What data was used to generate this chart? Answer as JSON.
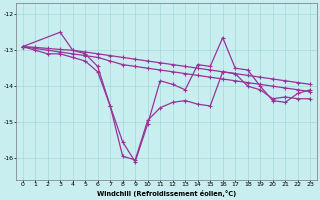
{
  "xlabel": "Windchill (Refroidissement éolien,°C)",
  "bg_color": "#c8eef0",
  "grid_color": "#a0d8dc",
  "line_color": "#993399",
  "xlim": [
    -0.5,
    23.5
  ],
  "ylim": [
    -16.6,
    -11.7
  ],
  "yticks": [
    -16,
    -15,
    -14,
    -13,
    -12
  ],
  "xticks": [
    0,
    1,
    2,
    3,
    4,
    5,
    6,
    7,
    8,
    9,
    10,
    11,
    12,
    13,
    14,
    15,
    16,
    17,
    18,
    19,
    20,
    21,
    22,
    23
  ],
  "series1_x": [
    0,
    1,
    2,
    3,
    4,
    5,
    6,
    7,
    8,
    9,
    10,
    11,
    12,
    13,
    14,
    15,
    16,
    17,
    18,
    19,
    20,
    21,
    22,
    23
  ],
  "series1_y": [
    -12.9,
    -12.95,
    -13.0,
    -13.05,
    -13.1,
    -13.15,
    -13.2,
    -13.3,
    -13.4,
    -13.45,
    -13.5,
    -13.55,
    -13.6,
    -13.65,
    -13.7,
    -13.75,
    -13.8,
    -13.85,
    -13.9,
    -13.95,
    -14.0,
    -14.05,
    -14.1,
    -14.15
  ],
  "series2_x": [
    0,
    1,
    2,
    3,
    4,
    5,
    6,
    7,
    8,
    9,
    10,
    11,
    12,
    13,
    14,
    15,
    16,
    17,
    18,
    19,
    20,
    21,
    22,
    23
  ],
  "series2_y": [
    -12.9,
    -12.92,
    -12.95,
    -12.98,
    -13.0,
    -13.05,
    -13.1,
    -13.15,
    -13.2,
    -13.25,
    -13.3,
    -13.35,
    -13.4,
    -13.45,
    -13.5,
    -13.55,
    -13.6,
    -13.65,
    -13.7,
    -13.75,
    -13.8,
    -13.85,
    -13.9,
    -13.95
  ],
  "series3_x": [
    0,
    1,
    2,
    3,
    4,
    5,
    6,
    7,
    8,
    9,
    10,
    11,
    12,
    13,
    14,
    15,
    16,
    17,
    18,
    19,
    20,
    21,
    22,
    23
  ],
  "series3_y": [
    -12.9,
    -13.0,
    -13.1,
    -13.1,
    -13.2,
    -13.3,
    -13.6,
    -14.55,
    -15.55,
    -16.1,
    -15.05,
    -13.85,
    -13.95,
    -14.1,
    -13.4,
    -13.45,
    -12.65,
    -13.5,
    -13.55,
    -14.0,
    -14.4,
    -14.45,
    -14.2,
    -14.1
  ],
  "series4_x": [
    0,
    3,
    4,
    5,
    6,
    7,
    8,
    9,
    10,
    11,
    12,
    13,
    14,
    15,
    16,
    17,
    18,
    19,
    20,
    21,
    22,
    23
  ],
  "series4_y": [
    -12.9,
    -12.5,
    -13.0,
    -13.1,
    -13.45,
    -14.55,
    -15.95,
    -16.05,
    -14.95,
    -14.6,
    -14.45,
    -14.4,
    -14.5,
    -14.55,
    -13.6,
    -13.65,
    -14.0,
    -14.1,
    -14.35,
    -14.3,
    -14.35,
    -14.35
  ]
}
